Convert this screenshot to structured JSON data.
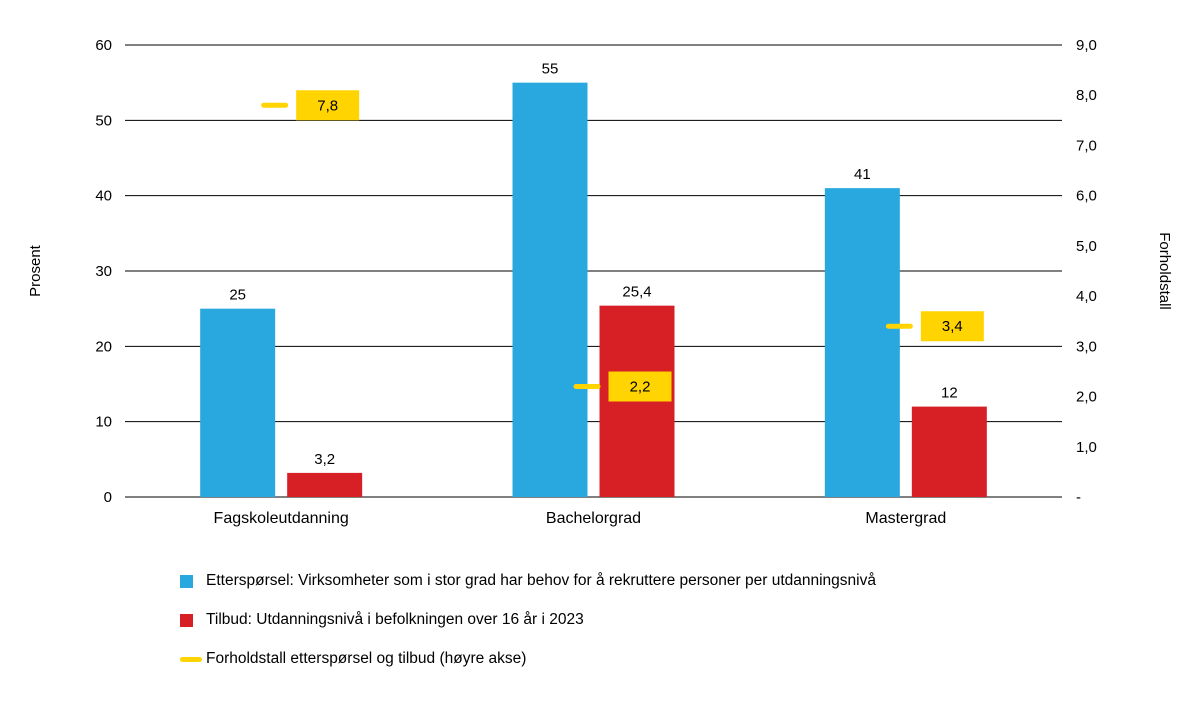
{
  "chart_data": {
    "type": "bar",
    "title": "",
    "categories": [
      "Fagskoleutdanning",
      "Bachelorgrad",
      "Mastergrad"
    ],
    "series": [
      {
        "name": "Etterspørsel: Virksomheter som i stor grad har behov for å rekruttere personer per utdanningsnivå",
        "type": "bar",
        "axis": "left",
        "color": "#29A8E0",
        "values": [
          25,
          55,
          41
        ],
        "value_labels": [
          "25",
          "55",
          "41"
        ]
      },
      {
        "name": "Tilbud: Utdanningsnivå i befolkningen over 16 år i 2023",
        "type": "bar",
        "axis": "left",
        "color": "#D71F26",
        "values": [
          3.2,
          25.4,
          12
        ],
        "value_labels": [
          "3,2",
          "25,4",
          "12"
        ]
      },
      {
        "name": "Forholdstall etterspørsel og tilbud (høyre akse)",
        "type": "dash-marker",
        "axis": "right",
        "color": "#FFD400",
        "values": [
          7.8,
          2.2,
          3.4
        ],
        "value_labels": [
          "7,8",
          "2,2",
          "3,4"
        ]
      }
    ],
    "left_axis": {
      "label": "Prosent",
      "min": 0,
      "max": 60,
      "ticks": [
        0,
        10,
        20,
        30,
        40,
        50,
        60
      ],
      "tick_labels": [
        "0",
        "10",
        "20",
        "30",
        "40",
        "50",
        "60"
      ]
    },
    "right_axis": {
      "label": "Forholdstall",
      "min": 0,
      "max": 9,
      "ticks": [
        0,
        1,
        2,
        3,
        4,
        5,
        6,
        7,
        8,
        9
      ],
      "tick_labels": [
        "-",
        "1,0",
        "2,0",
        "3,0",
        "4,0",
        "5,0",
        "6,0",
        "7,0",
        "8,0",
        "9,0"
      ]
    },
    "grid": true,
    "grid_color": "#000000",
    "text_color": "#000000",
    "legend_position": "bottom"
  }
}
